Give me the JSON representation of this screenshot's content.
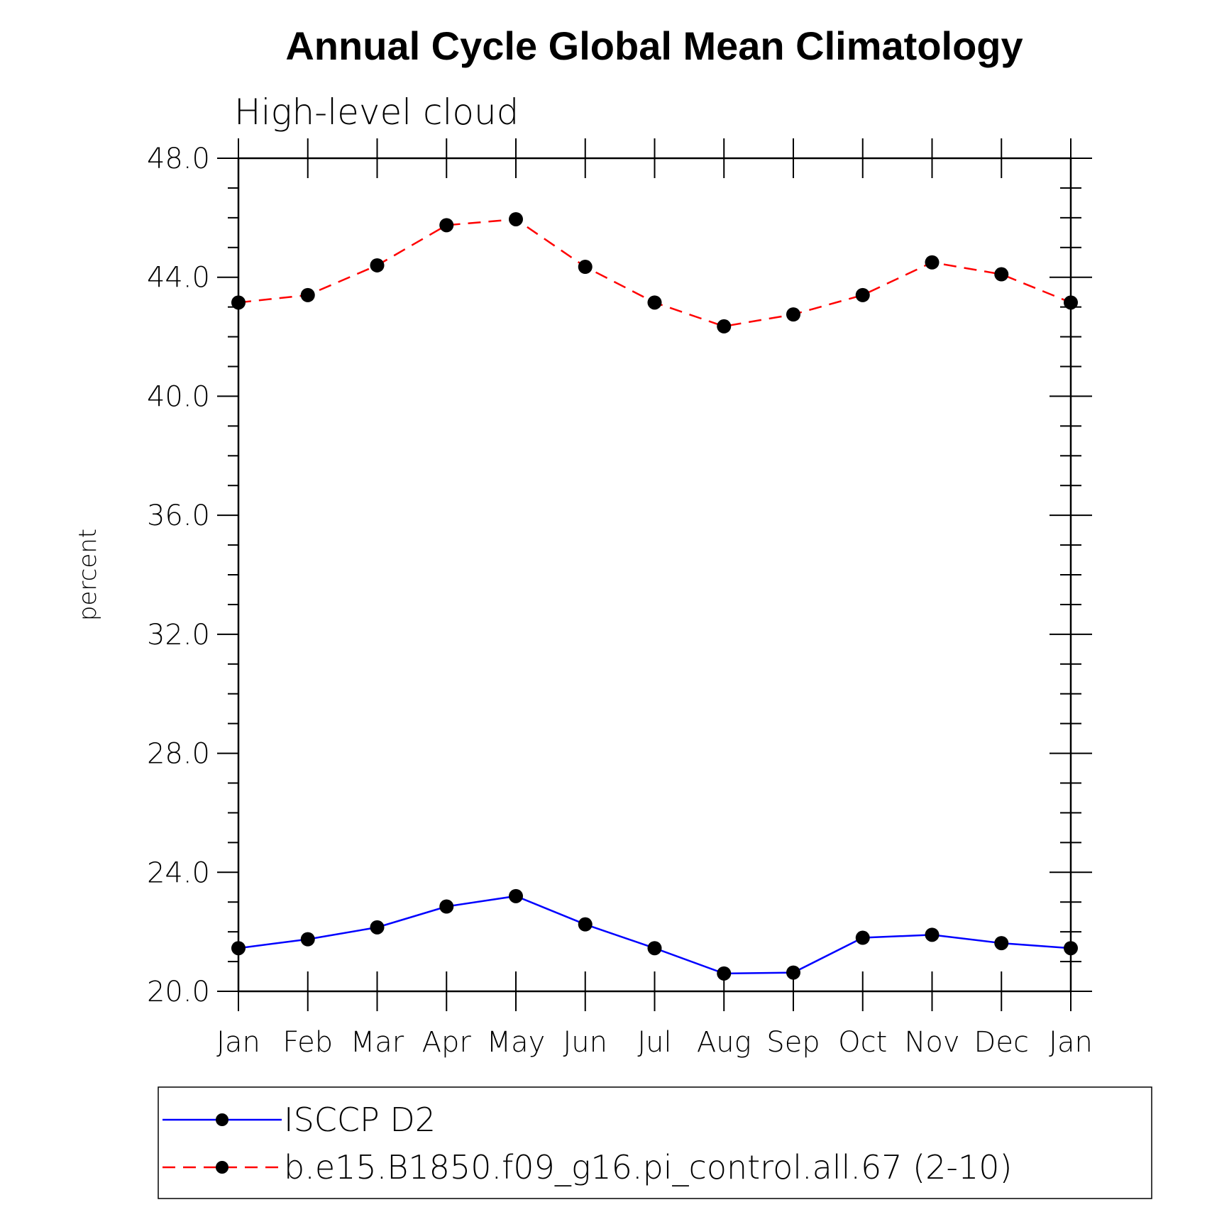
{
  "chart_data": {
    "type": "line",
    "title": "Annual Cycle Global Mean Climatology",
    "subtitle": "High-level cloud",
    "xlabel": "",
    "ylabel": "percent",
    "categories": [
      "Jan",
      "Feb",
      "Mar",
      "Apr",
      "May",
      "Jun",
      "Jul",
      "Aug",
      "Sep",
      "Oct",
      "Nov",
      "Dec",
      "Jan"
    ],
    "ylim": [
      20.0,
      48.0
    ],
    "yticks": [
      "20.0",
      "24.0",
      "28.0",
      "32.0",
      "36.0",
      "40.0",
      "44.0",
      "48.0"
    ],
    "legend_position": "bottom",
    "series": [
      {
        "name": "ISCCP D2",
        "color": "#0000ff",
        "line_style": "solid",
        "marker": "filled-circle",
        "values": [
          21.45,
          21.75,
          22.15,
          22.85,
          23.2,
          22.25,
          21.45,
          20.6,
          20.63,
          21.8,
          21.9,
          21.62,
          21.45
        ]
      },
      {
        "name": "b.e15.B1850.f09_g16.pi_control.all.67 (2-10)",
        "color": "#ff0000",
        "line_style": "dashed",
        "marker": "filled-circle",
        "values": [
          43.15,
          43.4,
          44.4,
          45.75,
          45.95,
          44.35,
          43.15,
          42.35,
          42.75,
          43.4,
          44.5,
          44.1,
          43.15
        ]
      }
    ]
  }
}
